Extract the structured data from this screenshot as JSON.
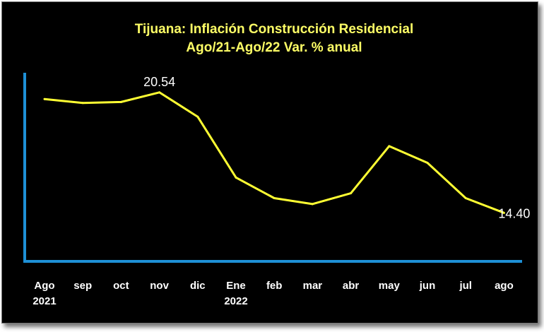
{
  "chart_data": {
    "type": "line",
    "title": "Tijuana: Inflación Construcción Residencial",
    "subtitle": "Ago/21-Ago/22 Var. % anual",
    "categories": [
      [
        "Ago",
        "2021"
      ],
      [
        "sep"
      ],
      [
        "oct"
      ],
      [
        "nov"
      ],
      [
        "dic"
      ],
      [
        "Ene",
        "2022"
      ],
      [
        "feb"
      ],
      [
        "mar"
      ],
      [
        "abr"
      ],
      [
        "may"
      ],
      [
        "jun"
      ],
      [
        "jul"
      ],
      [
        "ago"
      ]
    ],
    "series": [
      {
        "name": "Var. % anual",
        "values": [
          20.2,
          20.0,
          20.05,
          20.54,
          19.3,
          16.2,
          15.15,
          14.85,
          15.4,
          17.8,
          16.95,
          15.15,
          14.4
        ]
      }
    ],
    "data_labels": [
      {
        "index": 3,
        "text": "20.54"
      },
      {
        "index": 12,
        "text": "14.40"
      }
    ],
    "xlabel": "",
    "ylabel": "",
    "ylim": [
      12.0,
      21.0
    ],
    "grid": false,
    "legend": "none",
    "colors": {
      "background": "#000000",
      "line": "#ffff33",
      "title": "#ffff66",
      "axis": "#1e90d6",
      "tick_text": "#ffffff",
      "label_text": "#ffffff"
    }
  }
}
